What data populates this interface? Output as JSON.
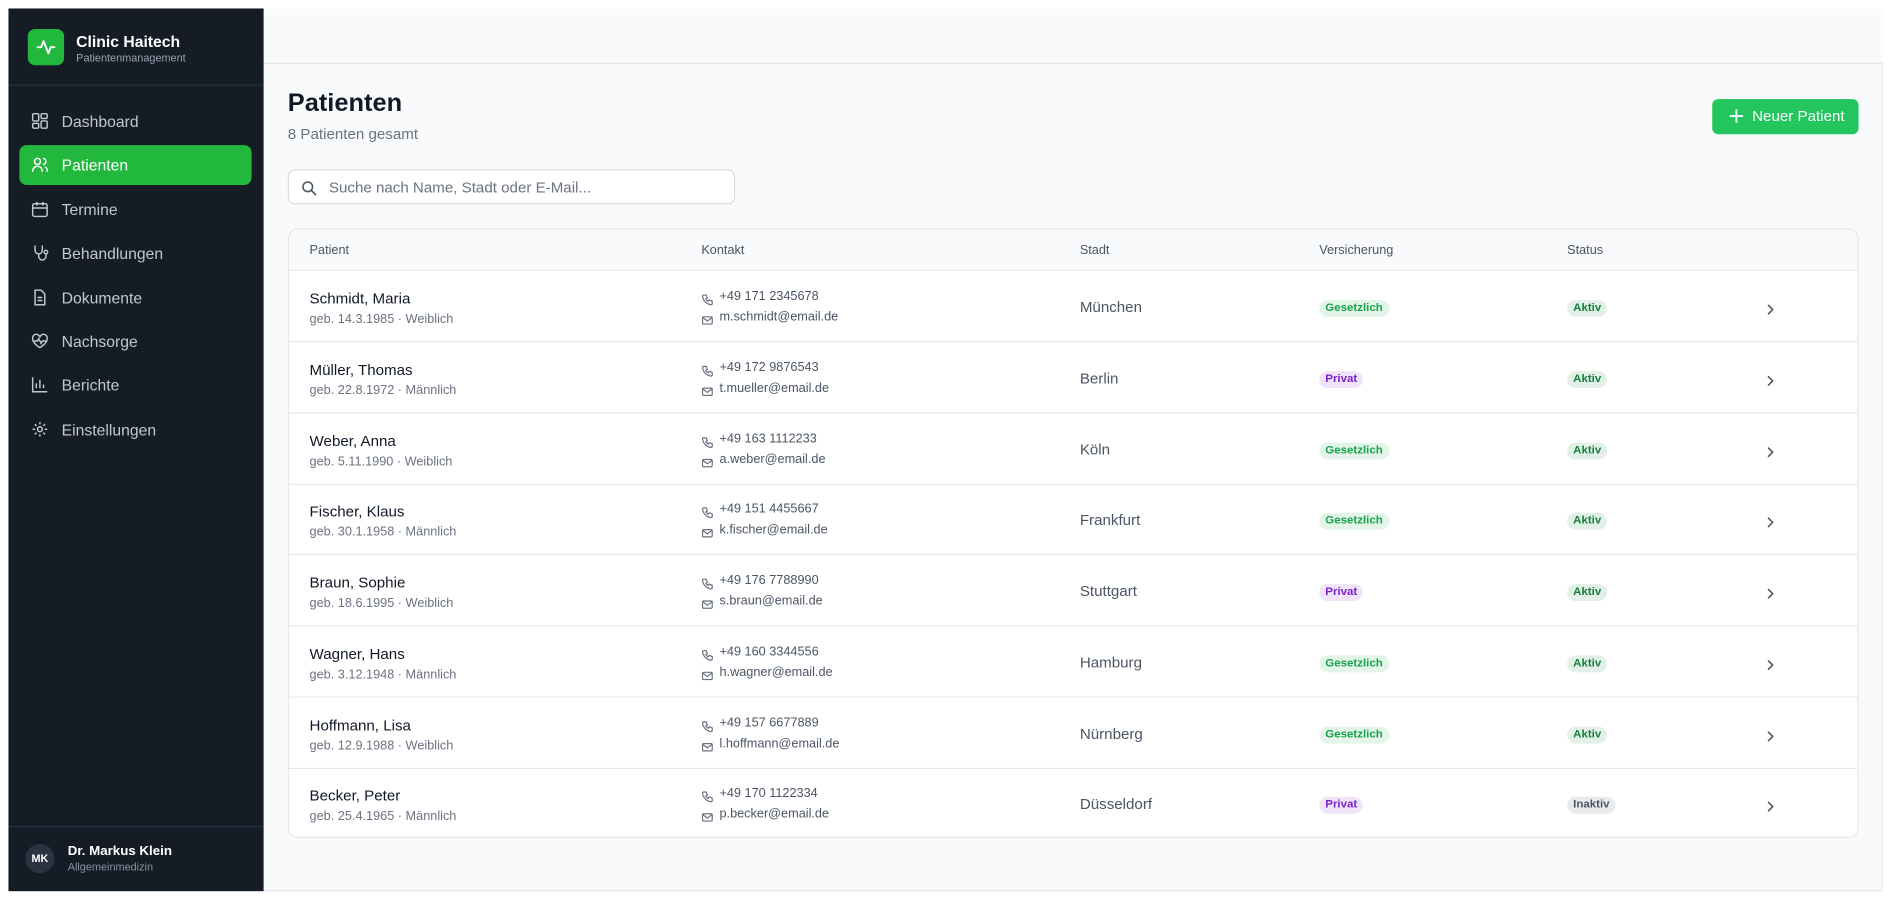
{
  "sidebar": {
    "brand": "Clinic Haitech",
    "subtitle": "Patientenmanagement",
    "nav": [
      "Dashboard",
      "Patienten",
      "Termine",
      "Behandlungen",
      "Dokumente",
      "Nachsorge",
      "Berichte",
      "Einstellungen"
    ],
    "user": {
      "initials": "MK",
      "name": "Dr. Markus Klein",
      "role": "Allgemeinmedizin"
    }
  },
  "header": {
    "title": "Patienten",
    "subtitle": "8 Patienten gesamt",
    "button": "Neuer Patient",
    "search_placeholder": "Suche nach Name, Stadt oder E-Mail..."
  },
  "table": {
    "columns": [
      "Patient",
      "Kontakt",
      "Stadt",
      "Versicherung",
      "Status"
    ],
    "rows": [
      {
        "name": "Schmidt, Maria",
        "meta": "geb. 14.3.1985 · Weiblich",
        "phone": "+49 171 2345678",
        "email": "m.schmidt@email.de",
        "city": "München",
        "insurance": "Gesetzlich",
        "insurance_color": "#16a34a",
        "status": "Aktiv",
        "status_color": "#15803d"
      },
      {
        "name": "Müller, Thomas",
        "meta": "geb. 22.8.1972 · Männlich",
        "phone": "+49 172 9876543",
        "email": "t.mueller@email.de",
        "city": "Berlin",
        "insurance": "Privat",
        "insurance_color": "#7e22ce",
        "status": "Aktiv",
        "status_color": "#15803d"
      },
      {
        "name": "Weber, Anna",
        "meta": "geb. 5.11.1990 · Weiblich",
        "phone": "+49 163 1112233",
        "email": "a.weber@email.de",
        "city": "Köln",
        "insurance": "Gesetzlich",
        "insurance_color": "#16a34a",
        "status": "Aktiv",
        "status_color": "#15803d"
      },
      {
        "name": "Fischer, Klaus",
        "meta": "geb. 30.1.1958 · Männlich",
        "phone": "+49 151 4455667",
        "email": "k.fischer@email.de",
        "city": "Frankfurt",
        "insurance": "Gesetzlich",
        "insurance_color": "#16a34a",
        "status": "Aktiv",
        "status_color": "#15803d"
      },
      {
        "name": "Braun, Sophie",
        "meta": "geb. 18.6.1995 · Weiblich",
        "phone": "+49 176 7788990",
        "email": "s.braun@email.de",
        "city": "Stuttgart",
        "insurance": "Privat",
        "insurance_color": "#7e22ce",
        "status": "Aktiv",
        "status_color": "#15803d"
      },
      {
        "name": "Wagner, Hans",
        "meta": "geb. 3.12.1948 · Männlich",
        "phone": "+49 160 3344556",
        "email": "h.wagner@email.de",
        "city": "Hamburg",
        "insurance": "Gesetzlich",
        "insurance_color": "#16a34a",
        "status": "Aktiv",
        "status_color": "#15803d"
      },
      {
        "name": "Hoffmann, Lisa",
        "meta": "geb. 12.9.1988 · Weiblich",
        "phone": "+49 157 6677889",
        "email": "l.hoffmann@email.de",
        "city": "Nürnberg",
        "insurance": "Gesetzlich",
        "insurance_color": "#16a34a",
        "status": "Aktiv",
        "status_color": "#15803d"
      },
      {
        "name": "Becker, Peter",
        "meta": "geb. 25.4.1965 · Männlich",
        "phone": "+49 170 1122334",
        "email": "p.becker@email.de",
        "city": "Düsseldorf",
        "insurance": "Privat",
        "insurance_color": "#7e22ce",
        "status": "Inaktiv",
        "status_color": "#4b5563"
      }
    ]
  }
}
